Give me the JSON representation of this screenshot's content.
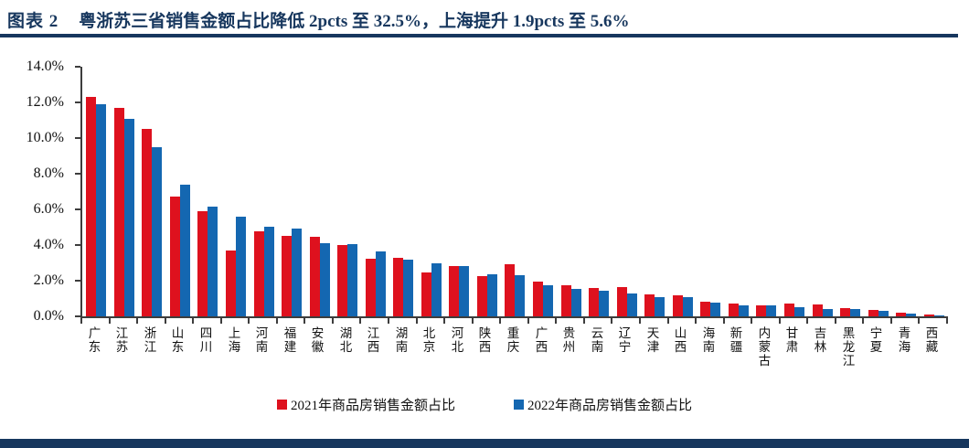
{
  "header": {
    "figure_label": "图表 2",
    "title": "粤浙苏三省销售金额占比降低 2pcts 至 32.5%，上海提升 1.9pcts 至 5.6%"
  },
  "colors": {
    "accent_navy": "#17375E",
    "series_2021": "#DE111E",
    "series_2022": "#1467B1",
    "axis": "#3d3d3d"
  },
  "chart_data": {
    "type": "bar",
    "title": "",
    "xlabel": "",
    "ylabel": "",
    "ylim": [
      0,
      14
    ],
    "ytick_step": 2,
    "yticks": [
      "0.0%",
      "2.0%",
      "4.0%",
      "6.0%",
      "8.0%",
      "10.0%",
      "12.0%",
      "14.0%"
    ],
    "grid": false,
    "legend_position": "bottom",
    "categories": [
      "广东",
      "江苏",
      "浙江",
      "山东",
      "四川",
      "上海",
      "河南",
      "福建",
      "安徽",
      "湖北",
      "江西",
      "湖南",
      "北京",
      "河北",
      "陕西",
      "重庆",
      "广西",
      "贵州",
      "云南",
      "辽宁",
      "天津",
      "山西",
      "海南",
      "新疆",
      "内蒙古",
      "甘肃",
      "吉林",
      "黑龙江",
      "宁夏",
      "青海",
      "西藏"
    ],
    "series": [
      {
        "name": "2021年商品房销售金额占比",
        "color_key": "series_2021",
        "values": [
          12.3,
          11.7,
          10.5,
          6.7,
          5.9,
          3.7,
          4.75,
          4.5,
          4.45,
          4.0,
          3.25,
          3.3,
          2.45,
          2.8,
          2.25,
          2.9,
          1.95,
          1.75,
          1.6,
          1.65,
          1.25,
          1.2,
          0.8,
          0.7,
          0.6,
          0.7,
          0.65,
          0.45,
          0.35,
          0.2,
          0.1
        ]
      },
      {
        "name": "2022年商品房销售金额占比",
        "color_key": "series_2022",
        "values": [
          11.9,
          11.1,
          9.5,
          7.4,
          6.15,
          5.6,
          5.05,
          4.9,
          4.1,
          4.05,
          3.65,
          3.2,
          2.95,
          2.8,
          2.35,
          2.3,
          1.75,
          1.55,
          1.45,
          1.3,
          1.1,
          1.1,
          0.75,
          0.6,
          0.6,
          0.5,
          0.4,
          0.4,
          0.3,
          0.15,
          0.05
        ]
      }
    ]
  }
}
